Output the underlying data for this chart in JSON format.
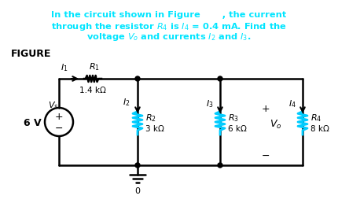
{
  "bg_color": "#ffffff",
  "text_color_cyan": "#00e5ff",
  "text_color_black": "#000000",
  "text_color_dark": "#1a1a1a",
  "title_lines": [
    "In the circuit shown in Figure       , the current",
    "through the resistor $R_4$ is $I_4$ = 0.4 mA. Find the",
    "voltage $V_o$ and currents $I_2$ and $I_3$."
  ],
  "figure_label": "FIGURE",
  "source_label": "6 V",
  "vs_label": "$V_s$",
  "r1_label": "$R_1$",
  "r1_val": "1.4 kΩ",
  "r2_label": "$R_2$",
  "r2_val": "3 kΩ",
  "r3_label": "$R_3$",
  "r3_val": "6 kΩ",
  "r4_label": "$R_4$",
  "r4_val": "8 kΩ",
  "vo_label": "$V_o$",
  "i1_label": "$I_1$",
  "i2_label": "$I_2$",
  "i3_label": "$I_3$",
  "i4_label": "$I_4$",
  "gnd_label": "0"
}
